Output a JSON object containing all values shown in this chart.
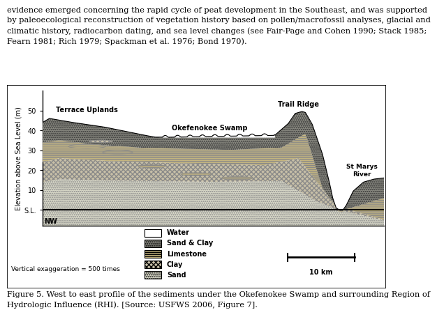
{
  "header_text": "evidence emerged concerning the rapid cycle of peat development in the Southeast, and was supported\nby paleoecological reconstruction of vegetation history based on pollen/macrofossil analyses, glacial and\nclimatic history, radiocarbon dating, and sea level changes (see Fair-Page and Cohen 1990; Stack 1985;\nFearn 1981; Rich 1979; Spackman et al. 1976; Bond 1970).",
  "caption_text": "Figure 5. West to east profile of the sediments under the Okefenokee Swamp and surrounding Region of\nHydrologic Influence (RHI). [Source: USFWS 2006, Figure 7].",
  "ylabel": "Elevation above Sea Level (m)",
  "ytick_vals": [
    0,
    10,
    20,
    30,
    40,
    50
  ],
  "ytick_labels": [
    "S.L.",
    "10",
    "20",
    "30",
    "40",
    "50"
  ],
  "ylim": [
    -8,
    60
  ],
  "xlim": [
    0,
    100
  ],
  "nw_label": "NW",
  "vertical_exag": "Vertical exaggeration = 500 times",
  "label_terrace": "Terrace Uplands",
  "label_swamp": "Okefenokee Swamp",
  "label_ridge": "Trail Ridge",
  "label_river": "St Marys\nRiver",
  "scale_label": "10 km",
  "legend_items": [
    "Water",
    "Sand & Clay",
    "Limestone",
    "Clay",
    "Sand"
  ]
}
